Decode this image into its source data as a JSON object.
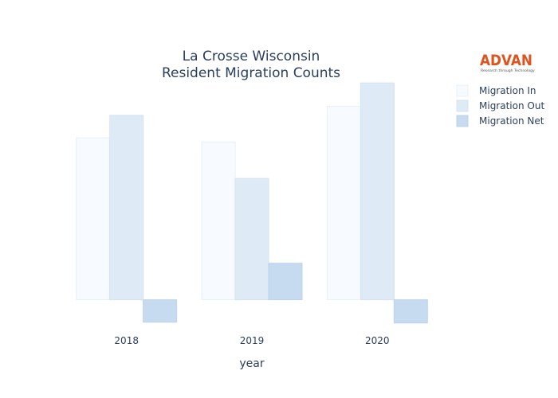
{
  "chart_data": {
    "type": "bar",
    "title": [
      "La Crosse Wisconsin",
      "Resident Migration Counts"
    ],
    "xlabel": "year",
    "ylabel": "",
    "categories": [
      "2018",
      "2019",
      "2020"
    ],
    "series": [
      {
        "name": "Migration In",
        "values": [
          195,
          190,
          233
        ],
        "color": "#f7fbff",
        "stroke": "#e8eff8"
      },
      {
        "name": "Migration Out",
        "values": [
          222,
          146,
          261
        ],
        "color": "#deebf7",
        "stroke": "#d4e2f2"
      },
      {
        "name": "Migration Net",
        "values": [
          -27,
          44,
          -28
        ],
        "color": "#c6dbef",
        "stroke": "#bcd3ea"
      }
    ],
    "ylim": [
      -32,
      265
    ],
    "grid": false,
    "legend": "top-right"
  },
  "logo": {
    "brand": "ADVAN",
    "tagline": "Research through Technology"
  }
}
